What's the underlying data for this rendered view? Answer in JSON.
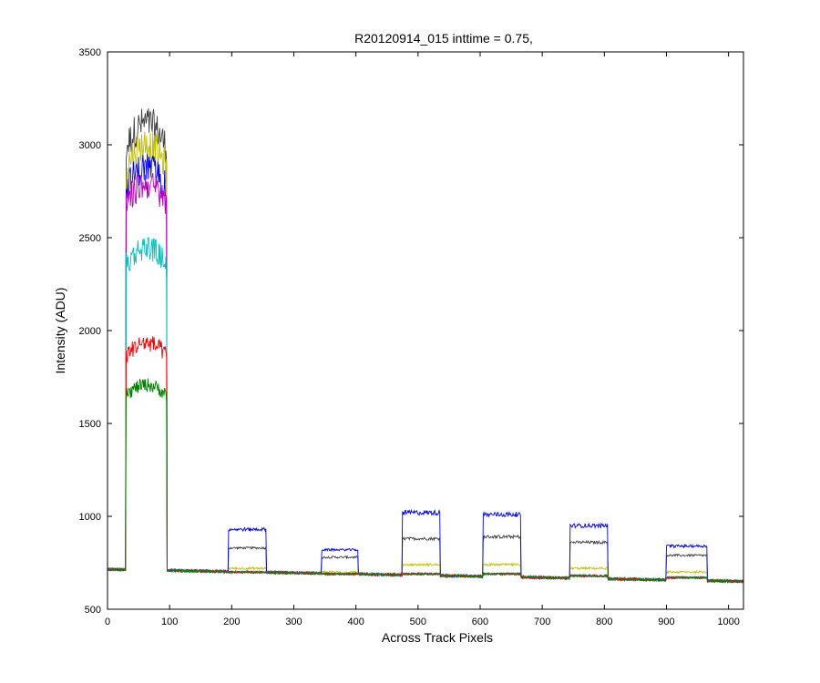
{
  "chart_data": {
    "type": "line",
    "title": "R20120914_015 inttime = 0.75,",
    "xlabel": "Across Track Pixels",
    "ylabel": "Intensity (ADU)",
    "xlim": [
      0,
      1024
    ],
    "ylim": [
      500,
      3500
    ],
    "xticks": [
      0,
      100,
      200,
      300,
      400,
      500,
      600,
      700,
      800,
      900,
      1000
    ],
    "yticks": [
      500,
      1000,
      1500,
      2000,
      2500,
      3000,
      3500
    ],
    "grid": false,
    "legend": "none",
    "baseline": {
      "start": 715,
      "end": 650
    },
    "bands": [
      {
        "x_start": 30,
        "x_end": 95
      },
      {
        "x_start": 195,
        "x_end": 255
      },
      {
        "x_start": 345,
        "x_end": 403
      },
      {
        "x_start": 475,
        "x_end": 535
      },
      {
        "x_start": 605,
        "x_end": 665
      },
      {
        "x_start": 745,
        "x_end": 805
      },
      {
        "x_start": 900,
        "x_end": 965
      }
    ],
    "series": [
      {
        "color": "#404040",
        "peaks": [
          3050,
          830,
          780,
          880,
          890,
          860,
          790
        ]
      },
      {
        "color": "#bfbf00",
        "peaks": [
          2940,
          720,
          700,
          740,
          740,
          720,
          700
        ]
      },
      {
        "color": "#0000ff",
        "peaks": [
          2820,
          930,
          820,
          1020,
          1010,
          950,
          840
        ]
      },
      {
        "color": "#bf00bf",
        "peaks": [
          2730,
          700,
          690,
          690,
          690,
          680,
          670
        ]
      },
      {
        "color": "#00bfbf",
        "peaks": [
          2400,
          700,
          690,
          690,
          690,
          680,
          670
        ]
      },
      {
        "color": "#ff0000",
        "peaks": [
          1900,
          700,
          690,
          690,
          690,
          680,
          670
        ]
      },
      {
        "color": "#008000",
        "peaks": [
          1680,
          700,
          690,
          690,
          690,
          680,
          670
        ]
      }
    ]
  }
}
